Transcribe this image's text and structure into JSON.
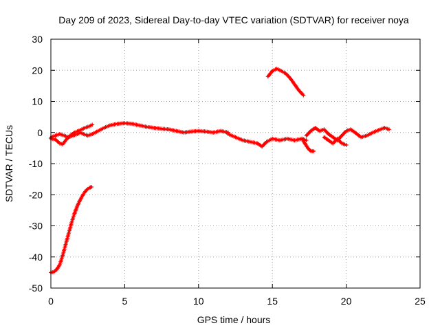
{
  "chart_data": {
    "type": "scatter",
    "title": "Day 209 of 2023, Sidereal Day-to-day VTEC variation (SDTVAR) for receiver noya",
    "xlabel": "GPS time / hours",
    "ylabel": "SDTVAR / TECUs",
    "xlim": [
      0,
      25
    ],
    "ylim": [
      -50,
      30
    ],
    "x_ticks": [
      0,
      5,
      10,
      15,
      20,
      25
    ],
    "y_ticks": [
      -50,
      -40,
      -30,
      -20,
      -10,
      0,
      10,
      20,
      30
    ],
    "grid": true,
    "marker": "plus",
    "series_color": "#ff0000",
    "series": [
      {
        "name": "segment-a",
        "x": [
          0.0,
          0.2,
          0.4,
          0.6,
          0.8,
          1.0,
          1.2,
          1.4,
          1.6,
          1.8,
          2.0,
          2.2,
          2.4,
          2.6,
          2.75
        ],
        "y": [
          -45.0,
          -44.8,
          -44.0,
          -42.5,
          -39.5,
          -36.0,
          -32.5,
          -29.0,
          -26.0,
          -23.5,
          -21.5,
          -19.8,
          -18.5,
          -17.8,
          -17.5
        ]
      },
      {
        "name": "segment-b",
        "x": [
          0.0,
          0.3,
          0.6,
          0.8,
          1.0,
          1.3,
          1.6,
          2.0,
          2.3,
          2.6,
          2.8
        ],
        "y": [
          -2.0,
          -2.2,
          -3.5,
          -3.8,
          -2.5,
          -1.0,
          0.0,
          0.8,
          1.5,
          2.0,
          2.5
        ]
      },
      {
        "name": "segment-c",
        "x": [
          0.0,
          0.3,
          0.6,
          0.9,
          1.2,
          1.5,
          1.8,
          2.0,
          2.2,
          2.5,
          2.8
        ],
        "y": [
          -1.5,
          -1.0,
          -0.5,
          -1.0,
          -1.5,
          -1.0,
          -0.5,
          0.0,
          -0.5,
          -1.0,
          -0.5
        ]
      },
      {
        "name": "segment-d",
        "x": [
          2.8,
          3.2,
          3.6,
          4.0,
          4.5,
          5.0,
          5.5,
          6.0,
          6.5,
          7.0,
          7.5,
          8.0,
          8.5,
          9.0,
          9.5,
          10.0,
          10.5,
          11.0,
          11.5,
          12.0
        ],
        "y": [
          -0.5,
          0.5,
          1.5,
          2.3,
          2.8,
          3.0,
          2.8,
          2.3,
          1.8,
          1.5,
          1.2,
          1.0,
          0.5,
          0.0,
          0.3,
          0.5,
          0.3,
          0.0,
          0.5,
          0.0
        ]
      },
      {
        "name": "segment-e",
        "x": [
          12.0,
          12.5,
          13.0,
          13.5,
          14.0,
          14.3,
          14.6,
          15.0,
          15.5,
          16.0,
          16.5,
          17.0,
          17.3
        ],
        "y": [
          -0.5,
          -1.5,
          -2.5,
          -3.0,
          -3.5,
          -4.5,
          -3.0,
          -2.0,
          -2.5,
          -2.0,
          -2.5,
          -2.0,
          -2.5
        ]
      },
      {
        "name": "segment-f",
        "x": [
          17.0,
          17.2,
          17.4,
          17.6,
          17.8
        ],
        "y": [
          -2.0,
          -3.5,
          -5.0,
          -6.0,
          -6.0
        ]
      },
      {
        "name": "segment-g",
        "x": [
          17.3,
          17.6,
          17.9,
          18.2,
          18.5,
          18.8,
          19.1,
          19.4,
          19.7,
          20.0,
          20.3,
          20.6,
          21.0,
          21.4,
          21.8,
          22.2,
          22.6,
          22.9
        ],
        "y": [
          -1.0,
          0.5,
          1.5,
          0.5,
          1.0,
          -0.5,
          -1.5,
          -2.5,
          -1.0,
          0.5,
          1.0,
          0.0,
          -1.5,
          -1.0,
          0.0,
          0.8,
          1.5,
          1.0
        ]
      },
      {
        "name": "segment-h",
        "x": [
          18.5,
          18.8,
          19.1,
          19.4,
          19.7,
          20.0
        ],
        "y": [
          -1.5,
          -2.5,
          -3.5,
          -2.0,
          -3.5,
          -4.0
        ]
      },
      {
        "name": "segment-i",
        "x": [
          14.7,
          15.0,
          15.3,
          15.6,
          15.9,
          16.2,
          16.5,
          16.8,
          17.1
        ],
        "y": [
          18.0,
          19.8,
          20.5,
          19.8,
          19.0,
          17.5,
          15.5,
          13.5,
          12.0
        ]
      }
    ]
  }
}
